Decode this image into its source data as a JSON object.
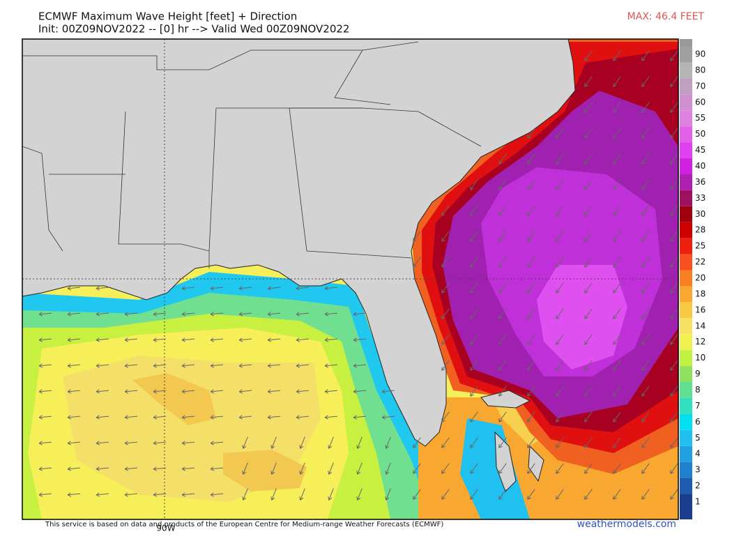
{
  "header": {
    "title": "ECMWF Maximum Wave Height [feet] + Direction",
    "subtitle": "Init: 00Z09NOV2022 -- [0] hr --> Valid Wed 00Z09NOV2022",
    "max_label": "MAX: 46.4 FEET"
  },
  "map": {
    "meridian_label": "90W"
  },
  "colorbar": {
    "labels": [
      1,
      2,
      3,
      4,
      5,
      6,
      7,
      8,
      9,
      10,
      12,
      14,
      16,
      18,
      20,
      22,
      25,
      28,
      30,
      33,
      36,
      40,
      45,
      50,
      55,
      60,
      70,
      80,
      90
    ],
    "colors": [
      "#1a3c8c",
      "#1f5cb0",
      "#1f80d0",
      "#1fa0e0",
      "#1fc0f0",
      "#00e0f0",
      "#30e0c0",
      "#60e090",
      "#90e060",
      "#c0f040",
      "#f0f050",
      "#f8e060",
      "#f8c840",
      "#f8a830",
      "#f88020",
      "#f85020",
      "#f02010",
      "#d00000",
      "#a00010",
      "#a01060",
      "#b020b0",
      "#d020e0",
      "#e040f0",
      "#e060e8",
      "#e080e0",
      "#d090d0",
      "#c0a0c0",
      "#b4b4b4",
      "#a0a0a0"
    ]
  },
  "footer": {
    "credit": "This service is based on data and products of the European Centre for Medium-range Weather Forecasts (ECMWF)",
    "watermark": "weathermodels.com"
  }
}
